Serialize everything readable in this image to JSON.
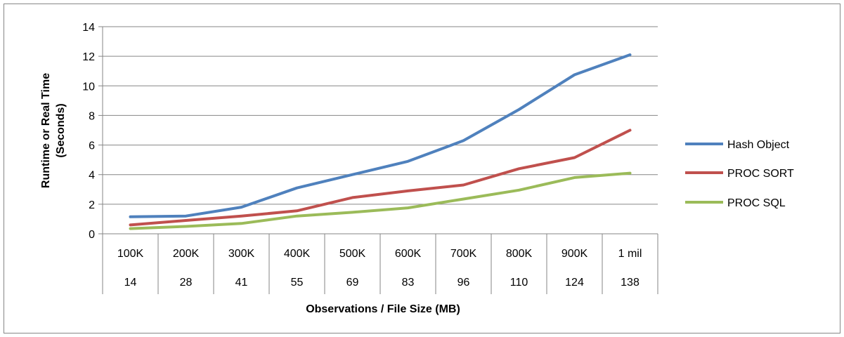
{
  "chart_data": {
    "type": "line",
    "title": "",
    "ylabel_line1": "Runtime or Real Time",
    "ylabel_line2": "(Seconds)",
    "xlabel": "Observations / File Size (MB)",
    "ylim": [
      0,
      14
    ],
    "yticks": [
      "0",
      "2",
      "4",
      "6",
      "8",
      "10",
      "12",
      "14"
    ],
    "categories": [
      "100K",
      "200K",
      "300K",
      "400K",
      "500K",
      "600K",
      "700K",
      "800K",
      "900K",
      "1 mil"
    ],
    "categories_row2": [
      "14",
      "28",
      "41",
      "55",
      "69",
      "83",
      "96",
      "110",
      "124",
      "138"
    ],
    "grid": true,
    "legend_position": "right",
    "series": [
      {
        "name": "Hash Object",
        "color": "#4f81bd",
        "values": [
          1.15,
          1.2,
          1.8,
          3.1,
          4.0,
          4.9,
          6.3,
          8.4,
          10.75,
          12.1
        ]
      },
      {
        "name": "PROC SORT",
        "color": "#c0504d",
        "values": [
          0.6,
          0.9,
          1.2,
          1.55,
          2.45,
          2.9,
          3.3,
          4.4,
          5.15,
          7.0
        ]
      },
      {
        "name": "PROC SQL",
        "color": "#9bbb59",
        "values": [
          0.35,
          0.5,
          0.7,
          1.2,
          1.45,
          1.75,
          2.35,
          2.95,
          3.8,
          4.1
        ]
      }
    ]
  }
}
